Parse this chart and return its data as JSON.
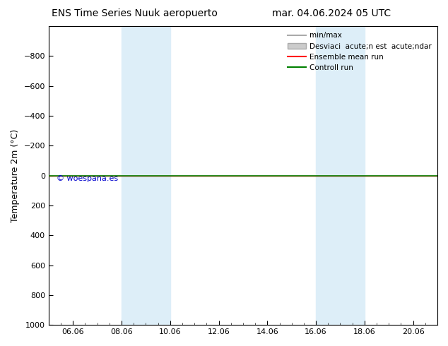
{
  "title_left": "ENS Time Series Nuuk aeropuerto",
  "title_right": "mar. 04.06.2024 05 UTC",
  "ylabel": "Temperature 2m (°C)",
  "ylim_top": -1000,
  "ylim_bottom": 1000,
  "yticks": [
    -800,
    -600,
    -400,
    -200,
    0,
    200,
    400,
    600,
    800,
    1000
  ],
  "xtick_labels": [
    "06.06",
    "08.06",
    "10.06",
    "12.06",
    "14.06",
    "16.06",
    "18.06",
    "20.06"
  ],
  "xtick_positions": [
    1,
    3,
    5,
    7,
    9,
    11,
    13,
    15
  ],
  "xlim": [
    0,
    16
  ],
  "shade_bands": [
    {
      "x_start": 3,
      "x_end": 5
    },
    {
      "x_start": 11,
      "x_end": 13
    }
  ],
  "shade_color": "#ddeef8",
  "ensemble_mean_y": 0,
  "ensemble_mean_color": "#ff0000",
  "control_run_y": 0,
  "control_run_color": "#008000",
  "minmax_color": "#aaaaaa",
  "std_color": "#cccccc",
  "watermark": "© woespana.es",
  "watermark_color": "#0000cc",
  "background_color": "#ffffff",
  "plot_bg_color": "#ffffff",
  "legend_minmax_label": "min/max",
  "legend_std_label": "Desviaci  acute;n est  acute;ndar",
  "legend_ens_label": "Ensemble mean run",
  "legend_ctrl_label": "Controll run",
  "title_fontsize": 10,
  "label_fontsize": 9,
  "tick_fontsize": 8,
  "legend_fontsize": 7.5
}
